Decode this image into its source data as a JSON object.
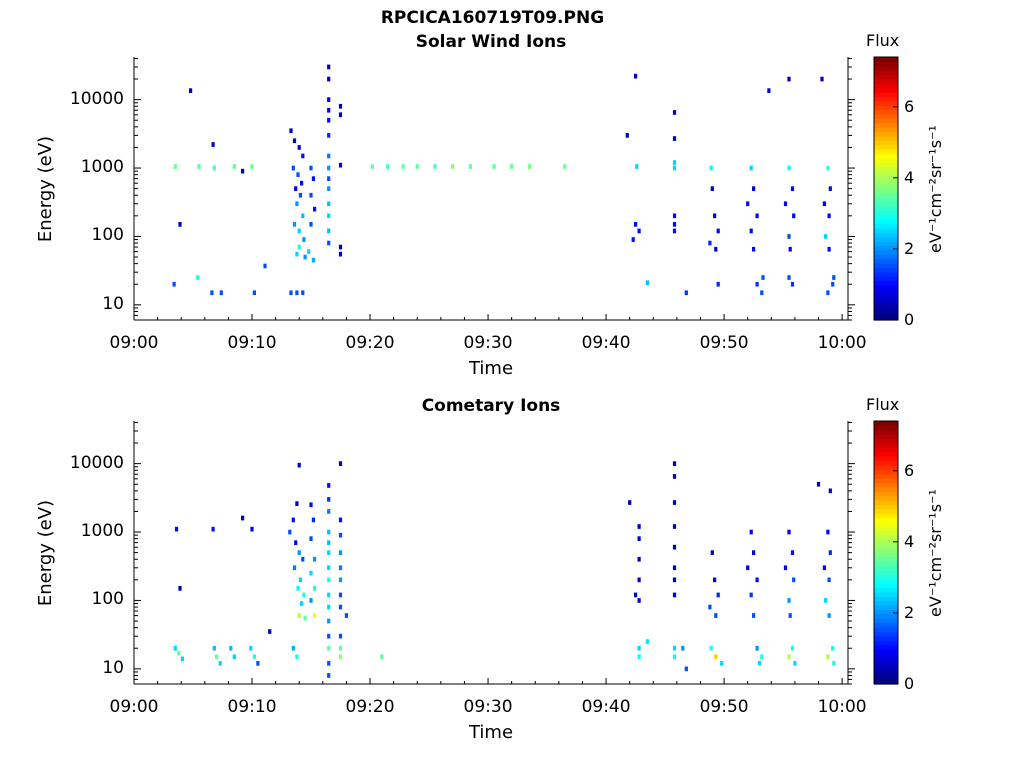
{
  "figure": {
    "title": "RPCICA160719T09.PNG"
  },
  "colors": {
    "axis": "#000000",
    "background": "#ffffff",
    "colormap": "jet"
  },
  "chart_data": [
    {
      "type": "heatmap",
      "title": "Solar Wind Ions",
      "xlabel": "Time",
      "ylabel": "Energy (eV)",
      "x_ticks": [
        "09:00",
        "09:10",
        "09:20",
        "09:30",
        "09:40",
        "09:50",
        "10:00"
      ],
      "x_range_minutes": [
        0,
        60.5
      ],
      "y_ticks": [
        "10",
        "100",
        "1000",
        "10000"
      ],
      "y_scale": "log",
      "y_range": [
        6,
        42000
      ],
      "colorbar": {
        "label": "Flux",
        "unit": "eV⁻¹cm⁻²sr⁻¹s⁻¹",
        "ticks": [
          "0",
          "2",
          "4",
          "6"
        ],
        "range": [
          0,
          7.4
        ]
      },
      "cells": [
        [
          3.5,
          1050,
          3.5
        ],
        [
          5.5,
          1050,
          3.5
        ],
        [
          6.8,
          1000,
          3.2
        ],
        [
          8.5,
          1050,
          3.5
        ],
        [
          10.0,
          1050,
          3.5
        ],
        [
          3.4,
          20,
          1.5
        ],
        [
          6.6,
          15,
          1.5
        ],
        [
          7.4,
          15,
          1.5
        ],
        [
          10.2,
          15,
          1.5
        ],
        [
          13.3,
          15,
          1.5
        ],
        [
          4.8,
          13500,
          0.5
        ],
        [
          6.7,
          2200,
          0.5
        ],
        [
          9.2,
          900,
          0.5
        ],
        [
          11.1,
          37,
          1.5
        ],
        [
          5.4,
          25,
          3
        ],
        [
          3.9,
          150,
          0.5
        ],
        [
          13.3,
          3500,
          0.5
        ],
        [
          13.6,
          2500,
          0.6
        ],
        [
          14.0,
          2000,
          0.8
        ],
        [
          14.3,
          1500,
          1
        ],
        [
          13.5,
          1000,
          1.5
        ],
        [
          13.9,
          800,
          1.5
        ],
        [
          14.2,
          600,
          1
        ],
        [
          13.7,
          500,
          0.8
        ],
        [
          14.1,
          400,
          1.5
        ],
        [
          13.8,
          300,
          2
        ],
        [
          14.3,
          200,
          2.3
        ],
        [
          13.6,
          150,
          2
        ],
        [
          14.0,
          120,
          2.5
        ],
        [
          14.4,
          90,
          2
        ],
        [
          14.0,
          70,
          3
        ],
        [
          13.8,
          55,
          2.5
        ],
        [
          14.5,
          50,
          2
        ],
        [
          15.0,
          1000,
          1.5
        ],
        [
          15.2,
          700,
          1
        ],
        [
          15.0,
          400,
          1.5
        ],
        [
          15.3,
          250,
          1
        ],
        [
          15.0,
          150,
          1.5
        ],
        [
          14.8,
          60,
          2.5
        ],
        [
          15.2,
          45,
          2.2
        ],
        [
          13.8,
          15,
          1.5
        ],
        [
          14.3,
          15,
          1.5
        ],
        [
          16.5,
          30000,
          0.4
        ],
        [
          16.5,
          20000,
          0.4
        ],
        [
          16.5,
          10000,
          0.6
        ],
        [
          16.5,
          7000,
          0.8
        ],
        [
          16.5,
          5000,
          1
        ],
        [
          16.5,
          3000,
          1.2
        ],
        [
          16.5,
          1500,
          1.8
        ],
        [
          16.5,
          1000,
          2
        ],
        [
          16.5,
          700,
          1.5
        ],
        [
          16.5,
          500,
          2
        ],
        [
          16.5,
          300,
          2.3
        ],
        [
          16.5,
          200,
          2.5
        ],
        [
          16.5,
          120,
          2.3
        ],
        [
          16.5,
          80,
          1.5
        ],
        [
          17.5,
          8000,
          0.5
        ],
        [
          17.5,
          6000,
          0.5
        ],
        [
          17.5,
          1100,
          0.6
        ],
        [
          17.5,
          70,
          0.6
        ],
        [
          17.5,
          55,
          0.6
        ],
        [
          20.2,
          1050,
          3.5
        ],
        [
          21.5,
          1050,
          3.3
        ],
        [
          22.8,
          1050,
          3.5
        ],
        [
          24.0,
          1050,
          3.5
        ],
        [
          25.5,
          1050,
          3.3
        ],
        [
          27.0,
          1050,
          3.8
        ],
        [
          28.5,
          1050,
          3.5
        ],
        [
          30.5,
          1050,
          3.5
        ],
        [
          32.0,
          1050,
          3.5
        ],
        [
          33.5,
          1050,
          3.6
        ],
        [
          36.5,
          1050,
          3.5
        ],
        [
          42.5,
          22000,
          0.5
        ],
        [
          41.8,
          3000,
          0.5
        ],
        [
          42.6,
          1050,
          2.5
        ],
        [
          42.5,
          150,
          1
        ],
        [
          42.8,
          120,
          1
        ],
        [
          42.3,
          90,
          1
        ],
        [
          43.5,
          21,
          2.3
        ],
        [
          45.8,
          6500,
          0.6
        ],
        [
          45.8,
          2700,
          0.6
        ],
        [
          45.8,
          1200,
          2.5
        ],
        [
          45.8,
          1000,
          2.5
        ],
        [
          45.8,
          200,
          1
        ],
        [
          45.8,
          150,
          1
        ],
        [
          45.8,
          120,
          1
        ],
        [
          46.8,
          15,
          1.3
        ],
        [
          49.0,
          500,
          0.5
        ],
        [
          49.2,
          200,
          0.8
        ],
        [
          49.5,
          120,
          1
        ],
        [
          48.8,
          80,
          1.2
        ],
        [
          49.3,
          65,
          0.8
        ],
        [
          48.9,
          1000,
          2.8
        ],
        [
          49.5,
          20,
          1.2
        ],
        [
          52.3,
          1000,
          2.5
        ],
        [
          52.5,
          500,
          0.7
        ],
        [
          52.0,
          300,
          0.8
        ],
        [
          52.8,
          200,
          1
        ],
        [
          52.3,
          120,
          1
        ],
        [
          52.5,
          65,
          1
        ],
        [
          52.8,
          20,
          1.3
        ],
        [
          53.2,
          15,
          1.5
        ],
        [
          53.3,
          25,
          1.5
        ],
        [
          55.5,
          1000,
          2.8
        ],
        [
          55.8,
          500,
          1
        ],
        [
          55.2,
          300,
          0.8
        ],
        [
          55.9,
          200,
          1
        ],
        [
          55.5,
          100,
          1.5
        ],
        [
          55.6,
          65,
          1
        ],
        [
          55.8,
          20,
          1.3
        ],
        [
          55.5,
          25,
          1.5
        ],
        [
          58.8,
          1000,
          3.2
        ],
        [
          59.0,
          500,
          1
        ],
        [
          58.5,
          300,
          0.8
        ],
        [
          58.9,
          200,
          1
        ],
        [
          58.6,
          100,
          2.5
        ],
        [
          58.9,
          65,
          1
        ],
        [
          59.2,
          20,
          1.5
        ],
        [
          58.8,
          15,
          1.5
        ],
        [
          59.3,
          25,
          1.5
        ],
        [
          55.5,
          20000,
          0.5
        ],
        [
          53.8,
          13500,
          0.5
        ],
        [
          58.3,
          20000,
          0.5
        ]
      ]
    },
    {
      "type": "heatmap",
      "title": "Cometary Ions",
      "xlabel": "Time",
      "ylabel": "Energy (eV)",
      "x_ticks": [
        "09:00",
        "09:10",
        "09:20",
        "09:30",
        "09:40",
        "09:50",
        "10:00"
      ],
      "x_range_minutes": [
        0,
        60.5
      ],
      "y_ticks": [
        "10",
        "100",
        "1000",
        "10000"
      ],
      "y_scale": "log",
      "y_range": [
        6,
        42000
      ],
      "colorbar": {
        "label": "Flux",
        "unit": "eV⁻¹cm⁻²sr⁻¹s⁻¹",
        "ticks": [
          "0",
          "2",
          "4",
          "6"
        ],
        "range": [
          0,
          7.4
        ]
      },
      "cells": [
        [
          3.6,
          1100,
          1
        ],
        [
          6.7,
          1100,
          1
        ],
        [
          9.2,
          1600,
          0.5
        ],
        [
          10.0,
          1100,
          0.8
        ],
        [
          3.9,
          150,
          0.5
        ],
        [
          3.5,
          20,
          2.5
        ],
        [
          3.8,
          17,
          3.5
        ],
        [
          4.1,
          14,
          2.5
        ],
        [
          6.8,
          20,
          2.3
        ],
        [
          7.0,
          15,
          3.5
        ],
        [
          7.3,
          12,
          2.5
        ],
        [
          8.2,
          20,
          2.3
        ],
        [
          8.5,
          15,
          2.5
        ],
        [
          9.9,
          20,
          2.5
        ],
        [
          10.2,
          15,
          3
        ],
        [
          10.5,
          12,
          1.5
        ],
        [
          13.5,
          20,
          2.2
        ],
        [
          13.8,
          15,
          3
        ],
        [
          11.5,
          35,
          0.5
        ],
        [
          14.0,
          9500,
          0.5
        ],
        [
          13.8,
          2600,
          0.6
        ],
        [
          13.5,
          1500,
          1
        ],
        [
          13.2,
          1000,
          1.5
        ],
        [
          13.7,
          700,
          1
        ],
        [
          14.0,
          500,
          2
        ],
        [
          14.3,
          400,
          1.5
        ],
        [
          13.6,
          300,
          1.8
        ],
        [
          14.1,
          200,
          2.5
        ],
        [
          13.9,
          150,
          2.8
        ],
        [
          14.4,
          120,
          3
        ],
        [
          14.2,
          90,
          2.5
        ],
        [
          14.0,
          60,
          4
        ],
        [
          14.5,
          55,
          3.5
        ],
        [
          15.0,
          2500,
          1
        ],
        [
          15.2,
          1500,
          1.2
        ],
        [
          15.0,
          800,
          1.5
        ],
        [
          15.3,
          400,
          2
        ],
        [
          15.0,
          250,
          2.5
        ],
        [
          15.3,
          150,
          3
        ],
        [
          15.0,
          100,
          2
        ],
        [
          15.3,
          60,
          4.5
        ],
        [
          16.5,
          4800,
          1
        ],
        [
          16.5,
          3000,
          1.3
        ],
        [
          16.5,
          2000,
          1.8
        ],
        [
          16.5,
          1000,
          2.3
        ],
        [
          16.5,
          700,
          2.3
        ],
        [
          16.5,
          500,
          2.5
        ],
        [
          16.5,
          300,
          2.5
        ],
        [
          16.5,
          200,
          3
        ],
        [
          16.5,
          120,
          2.5
        ],
        [
          16.5,
          80,
          2.5
        ],
        [
          16.5,
          50,
          2
        ],
        [
          16.5,
          30,
          1.5
        ],
        [
          16.5,
          20,
          3.5
        ],
        [
          16.5,
          12,
          1.5
        ],
        [
          16.5,
          8,
          1.5
        ],
        [
          17.5,
          10000,
          0.5
        ],
        [
          17.5,
          1500,
          1
        ],
        [
          17.5,
          900,
          1.5
        ],
        [
          17.5,
          500,
          2
        ],
        [
          17.5,
          300,
          1.8
        ],
        [
          17.5,
          200,
          2
        ],
        [
          17.5,
          120,
          1.5
        ],
        [
          17.5,
          80,
          1.5
        ],
        [
          18.0,
          60,
          1.5
        ],
        [
          17.5,
          30,
          1.5
        ],
        [
          17.5,
          20,
          3.5
        ],
        [
          17.5,
          15,
          3.8
        ],
        [
          21.0,
          15,
          3.5
        ],
        [
          42.0,
          2700,
          0.5
        ],
        [
          42.8,
          1200,
          0.5
        ],
        [
          42.8,
          800,
          0.5
        ],
        [
          42.8,
          400,
          0.5
        ],
        [
          42.8,
          200,
          0.5
        ],
        [
          42.5,
          120,
          0.6
        ],
        [
          42.8,
          100,
          0.8
        ],
        [
          42.8,
          20,
          2.5
        ],
        [
          42.8,
          15,
          2.8
        ],
        [
          43.5,
          25,
          2.6
        ],
        [
          45.8,
          10000,
          0.5
        ],
        [
          45.8,
          6500,
          0.5
        ],
        [
          45.8,
          2700,
          0.5
        ],
        [
          45.8,
          1200,
          0.5
        ],
        [
          45.8,
          600,
          0.5
        ],
        [
          45.8,
          300,
          0.5
        ],
        [
          45.8,
          200,
          0.5
        ],
        [
          45.8,
          120,
          0.8
        ],
        [
          45.8,
          20,
          2.5
        ],
        [
          45.8,
          15,
          2.8
        ],
        [
          46.8,
          10,
          1.5
        ],
        [
          46.5,
          20,
          2
        ],
        [
          49.0,
          500,
          0.5
        ],
        [
          49.2,
          200,
          0.8
        ],
        [
          49.5,
          120,
          1.2
        ],
        [
          48.8,
          80,
          1.5
        ],
        [
          49.3,
          60,
          1.5
        ],
        [
          48.9,
          20,
          3
        ],
        [
          49.3,
          15,
          5
        ],
        [
          49.8,
          12,
          2.5
        ],
        [
          52.3,
          1000,
          0.8
        ],
        [
          52.5,
          500,
          0.8
        ],
        [
          52.0,
          300,
          0.8
        ],
        [
          52.8,
          200,
          1
        ],
        [
          52.3,
          120,
          1.3
        ],
        [
          52.5,
          60,
          1.5
        ],
        [
          52.8,
          20,
          2
        ],
        [
          53.2,
          15,
          3
        ],
        [
          53.0,
          12,
          2.5
        ],
        [
          55.5,
          1000,
          0.8
        ],
        [
          55.8,
          500,
          1
        ],
        [
          55.2,
          300,
          0.8
        ],
        [
          55.9,
          200,
          1.5
        ],
        [
          55.5,
          100,
          2
        ],
        [
          55.6,
          60,
          1.5
        ],
        [
          55.8,
          20,
          3
        ],
        [
          55.5,
          15,
          4
        ],
        [
          56.0,
          12,
          2.5
        ],
        [
          58.8,
          1000,
          0.8
        ],
        [
          59.0,
          500,
          1.2
        ],
        [
          58.5,
          300,
          1
        ],
        [
          58.9,
          200,
          1.5
        ],
        [
          58.6,
          100,
          2.5
        ],
        [
          58.9,
          60,
          2
        ],
        [
          59.2,
          20,
          3
        ],
        [
          58.8,
          15,
          4
        ],
        [
          59.3,
          12,
          3
        ],
        [
          58.0,
          5000,
          0.5
        ],
        [
          59.0,
          4000,
          0.5
        ]
      ]
    }
  ]
}
